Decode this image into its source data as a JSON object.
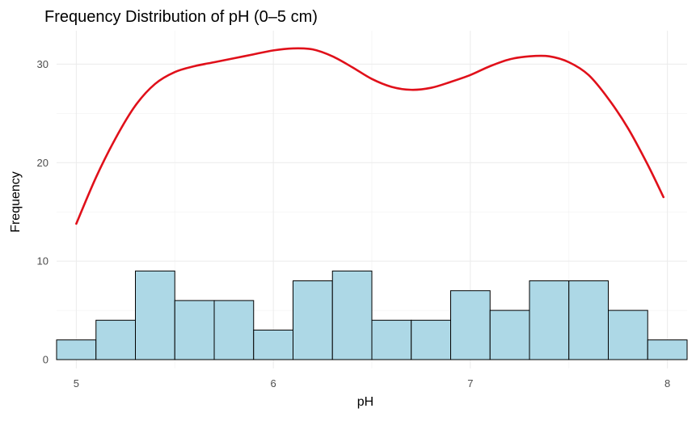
{
  "chart_data": {
    "type": "bar",
    "title": "Frequency Distribution of pH (0–5 cm)",
    "xlabel": "pH",
    "ylabel": "Frequency",
    "xlim": [
      4.9,
      8.1
    ],
    "ylim": [
      -0.9,
      33.4
    ],
    "x_ticks": [
      5,
      6,
      7,
      8
    ],
    "x_tick_labels": [
      "5",
      "6",
      "7",
      "8"
    ],
    "y_ticks": [
      0,
      10,
      20,
      30
    ],
    "y_tick_labels": [
      "0",
      "10",
      "20",
      "30"
    ],
    "grid": true,
    "bins": [
      {
        "start": 4.9,
        "end": 5.1,
        "count": 2
      },
      {
        "start": 5.1,
        "end": 5.3,
        "count": 4
      },
      {
        "start": 5.3,
        "end": 5.5,
        "count": 9
      },
      {
        "start": 5.5,
        "end": 5.7,
        "count": 6
      },
      {
        "start": 5.7,
        "end": 5.9,
        "count": 6
      },
      {
        "start": 5.9,
        "end": 6.1,
        "count": 3
      },
      {
        "start": 6.1,
        "end": 6.3,
        "count": 8
      },
      {
        "start": 6.3,
        "end": 6.5,
        "count": 9
      },
      {
        "start": 6.5,
        "end": 6.7,
        "count": 4
      },
      {
        "start": 6.7,
        "end": 6.9,
        "count": 4
      },
      {
        "start": 6.9,
        "end": 7.1,
        "count": 7
      },
      {
        "start": 7.1,
        "end": 7.3,
        "count": 5
      },
      {
        "start": 7.3,
        "end": 7.5,
        "count": 8
      },
      {
        "start": 7.5,
        "end": 7.7,
        "count": 8
      },
      {
        "start": 7.7,
        "end": 7.9,
        "count": 5
      },
      {
        "start": 7.9,
        "end": 8.1,
        "count": 2
      }
    ],
    "density_curve": {
      "x": [
        5.0,
        5.1,
        5.2,
        5.3,
        5.4,
        5.5,
        5.6,
        5.7,
        5.8,
        5.9,
        6.0,
        6.1,
        6.2,
        6.3,
        6.4,
        6.5,
        6.6,
        6.7,
        6.8,
        6.9,
        7.0,
        7.1,
        7.2,
        7.3,
        7.4,
        7.5,
        7.6,
        7.7,
        7.8,
        7.9,
        7.98
      ],
      "y": [
        13.8,
        18.5,
        22.5,
        25.8,
        28.0,
        29.2,
        29.8,
        30.2,
        30.6,
        31.0,
        31.4,
        31.6,
        31.5,
        30.8,
        29.7,
        28.5,
        27.7,
        27.4,
        27.6,
        28.2,
        28.9,
        29.8,
        30.5,
        30.8,
        30.8,
        30.2,
        28.9,
        26.5,
        23.5,
        19.8,
        16.5
      ]
    },
    "colors": {
      "bar_fill": "#add8e6",
      "bar_outline": "#000000",
      "curve": "#e0101a"
    }
  }
}
